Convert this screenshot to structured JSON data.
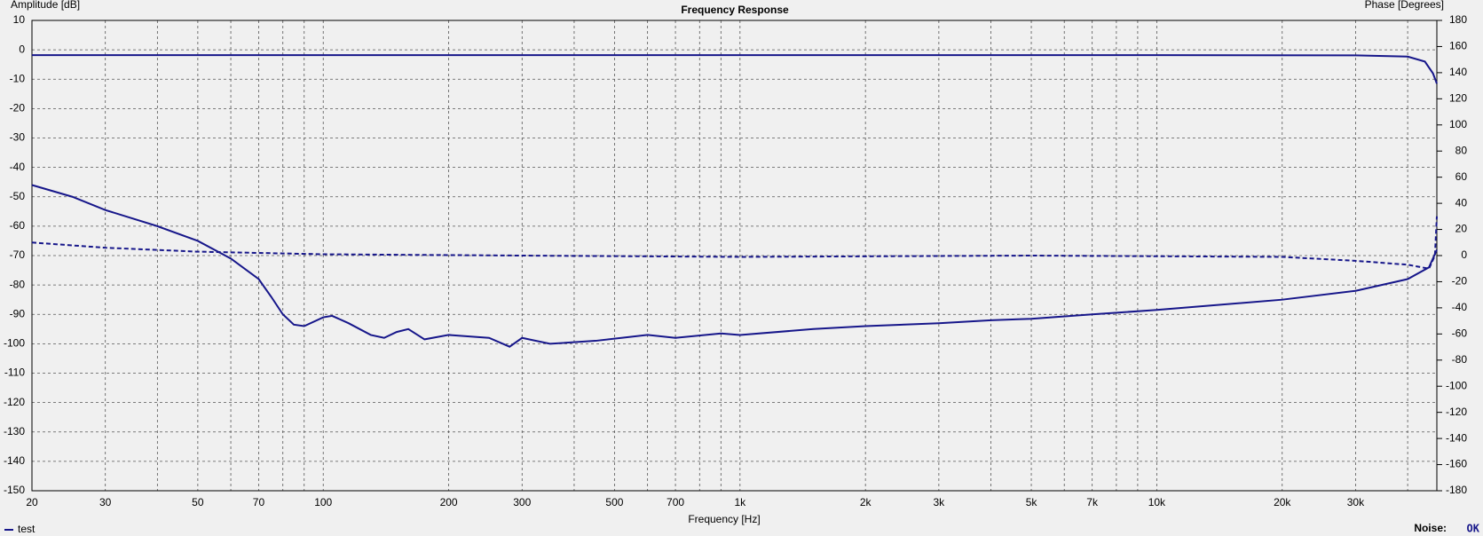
{
  "chart_data": {
    "type": "line",
    "title": "Frequency Response",
    "x_label": "Frequency [Hz]",
    "y_label": "Amplitude [dB]",
    "y2_label": "Phase [Degrees]",
    "log_x": true,
    "grid": true,
    "xlim": [
      20,
      47000
    ],
    "xticks": [
      20,
      30,
      50,
      70,
      100,
      200,
      300,
      500,
      700,
      {
        "value": 1000,
        "label": "1k"
      },
      {
        "value": 2000,
        "label": "2k"
      },
      {
        "value": 3000,
        "label": "3k"
      },
      {
        "value": 5000,
        "label": "5k"
      },
      {
        "value": 7000,
        "label": "7k"
      },
      {
        "value": 10000,
        "label": "10k"
      },
      {
        "value": 20000,
        "label": "20k"
      },
      {
        "value": 30000,
        "label": "30k"
      }
    ],
    "xminorticks": [
      40,
      60,
      80,
      90,
      400,
      600,
      800,
      900,
      4000,
      6000,
      8000,
      9000,
      40000
    ],
    "ylim": [
      -150,
      10
    ],
    "yticks": [
      -150,
      -140,
      -130,
      -120,
      -110,
      -100,
      -90,
      -80,
      -70,
      -60,
      -50,
      -40,
      -30,
      -20,
      -10,
      0,
      10
    ],
    "y2lim": [
      -180,
      180
    ],
    "y2ticks": [
      -180,
      -160,
      -140,
      -120,
      -100,
      -80,
      -60,
      -40,
      -20,
      0,
      20,
      40,
      60,
      80,
      100,
      120,
      140,
      160,
      180
    ],
    "series": [
      {
        "name": "test",
        "color": "#16168a",
        "x": [
          20,
          1000,
          10000,
          30000,
          40000,
          44000,
          46000,
          47000
        ],
        "values": [
          -1.8,
          -1.8,
          -1.8,
          -1.9,
          -2.3,
          -4,
          -8,
          -11.5
        ]
      },
      {
        "color": "#16168a",
        "axis": "y2",
        "dashed": true,
        "x": [
          20,
          30,
          50,
          100,
          300,
          1000,
          5000,
          20000,
          30000,
          40000,
          45000,
          46500,
          47000
        ],
        "values": [
          10,
          6,
          3,
          1,
          0,
          -1,
          0,
          -1,
          -4,
          -7,
          -10,
          0,
          30
        ]
      },
      {
        "color": "#16168a",
        "x": [
          20,
          25,
          30,
          40,
          50,
          60,
          70,
          75,
          80,
          85,
          90,
          100,
          105,
          115,
          130,
          140,
          150,
          160,
          175,
          200,
          250,
          280,
          300,
          350,
          450,
          600,
          700,
          900,
          1000,
          1500,
          2000,
          3000,
          4000,
          5000,
          7000,
          10000,
          20000,
          30000,
          40000,
          45000,
          47000
        ],
        "values": [
          -46,
          -50,
          -54.5,
          -60,
          -65,
          -71,
          -78,
          -84,
          -90,
          -93.5,
          -94,
          -91,
          -90.5,
          -93,
          -97,
          -98,
          -96,
          -95,
          -98.5,
          -97,
          -98,
          -101,
          -98,
          -100,
          -99,
          -97,
          -98,
          -96.5,
          -97,
          -95,
          -94,
          -93,
          -92,
          -91.5,
          -90,
          -88.5,
          -85,
          -82,
          -78,
          -74,
          -68
        ]
      }
    ],
    "status": {
      "label": "Noise:",
      "value": "OK"
    }
  }
}
